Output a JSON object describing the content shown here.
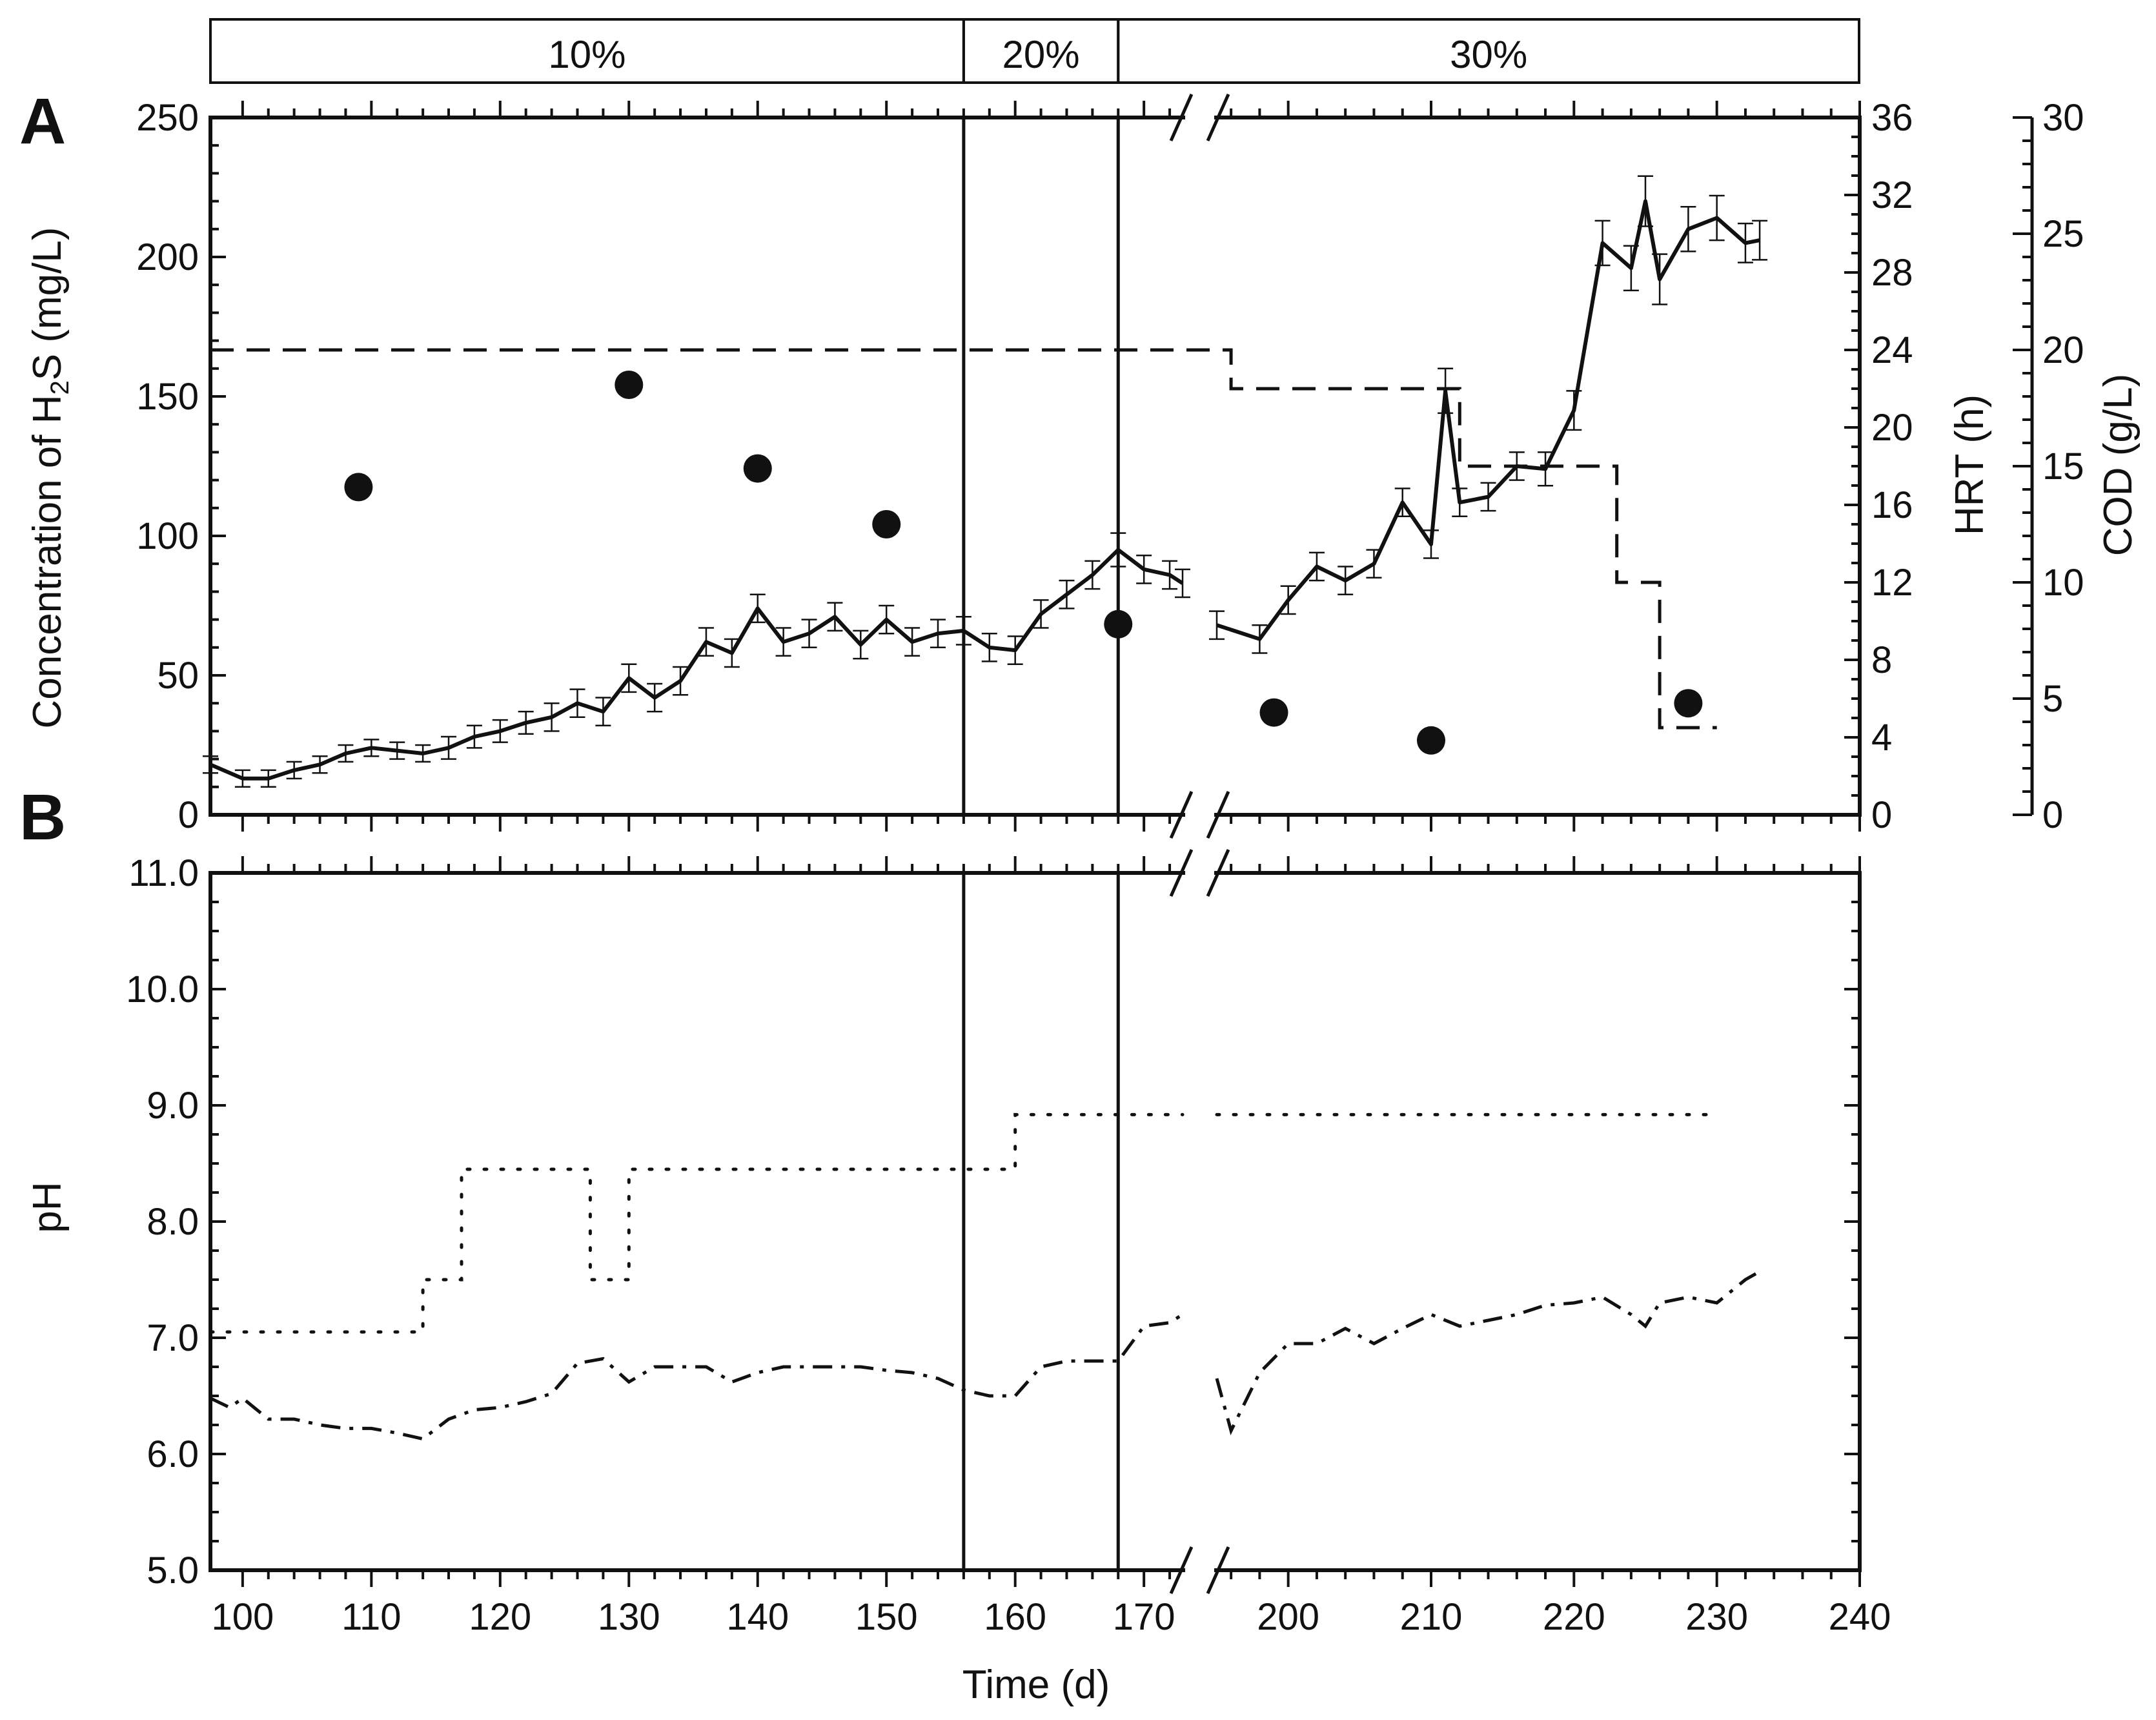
{
  "figure": {
    "panel_a_letter": "A",
    "panel_b_letter": "B",
    "bands": [
      {
        "label": "10%",
        "x_start": 97.5,
        "x_end": 156
      },
      {
        "label": "20%",
        "x_start": 156,
        "x_end": 168
      },
      {
        "label": "30%",
        "x_start": 168,
        "x_end": 240
      }
    ],
    "phase_boundaries_x": [
      156,
      168
    ],
    "axis_break": {
      "from": 173,
      "to": 195
    }
  },
  "chart_data": [
    {
      "id": "A",
      "type": "line",
      "xlabel": "",
      "xlim": [
        97.5,
        240
      ],
      "x_break": [
        173,
        195
      ],
      "y_axes": [
        {
          "id": "left",
          "label_parts": [
            "Concentration of H",
            "2",
            "S (mg/L)"
          ],
          "ylim": [
            0,
            250
          ],
          "ticks": [
            0,
            50,
            100,
            150,
            200,
            250
          ]
        },
        {
          "id": "hrt",
          "label": "HRT (h)",
          "ylim": [
            0,
            36
          ],
          "ticks": [
            0,
            4,
            8,
            12,
            16,
            20,
            24,
            28,
            32,
            36
          ]
        },
        {
          "id": "cod",
          "label": "COD (g/L)",
          "ylim": [
            0,
            30
          ],
          "ticks": [
            0,
            5,
            10,
            15,
            20,
            25,
            30
          ]
        }
      ],
      "series": [
        {
          "style": "solid-with-error-bars",
          "axis": "left",
          "x": [
            97.5,
            100,
            102,
            104,
            106,
            108,
            110,
            112,
            114,
            116,
            118,
            120,
            122,
            124,
            126,
            128,
            130,
            132,
            134,
            136,
            138,
            140,
            142,
            144,
            146,
            148,
            150,
            152,
            154,
            156,
            158,
            160,
            162,
            164,
            166,
            168,
            170,
            172,
            173,
            195,
            198,
            200,
            202,
            204,
            206,
            208,
            210,
            211,
            212,
            214,
            216,
            218,
            220,
            222,
            224,
            225,
            226,
            228,
            230,
            232,
            233
          ],
          "y": [
            18,
            13,
            13,
            16,
            18,
            22,
            24,
            23,
            22,
            24,
            28,
            30,
            33,
            35,
            40,
            37,
            49,
            42,
            48,
            62,
            58,
            74,
            62,
            65,
            71,
            61,
            70,
            62,
            65,
            66,
            60,
            59,
            72,
            79,
            86,
            95,
            88,
            86,
            83,
            68,
            63,
            77,
            89,
            84,
            90,
            112,
            97,
            152,
            112,
            114,
            125,
            124,
            145,
            205,
            196,
            220,
            192,
            210,
            214,
            205,
            206
          ],
          "err": [
            3,
            3,
            3,
            3,
            3,
            3,
            3,
            3,
            3,
            4,
            4,
            4,
            4,
            5,
            5,
            5,
            5,
            5,
            5,
            5,
            5,
            5,
            5,
            5,
            5,
            5,
            5,
            5,
            5,
            5,
            5,
            5,
            5,
            5,
            5,
            6,
            5,
            5,
            5,
            5,
            5,
            5,
            5,
            5,
            5,
            5,
            5,
            8,
            5,
            5,
            5,
            6,
            7,
            8,
            8,
            9,
            9,
            8,
            8,
            7,
            7
          ]
        },
        {
          "style": "dashed-step",
          "axis": "hrt",
          "x": [
            97.5,
            173,
            195,
            196,
            210,
            211,
            212,
            222,
            223,
            225,
            226,
            230
          ],
          "y": [
            24,
            24,
            24,
            22,
            22,
            22,
            18,
            18,
            12,
            12,
            4.5,
            4.5
          ]
        },
        {
          "style": "markers",
          "axis": "cod",
          "x": [
            109,
            130,
            140,
            150,
            168,
            199,
            210,
            228
          ],
          "y": [
            14.1,
            18.5,
            14.9,
            12.5,
            8.2,
            4.4,
            3.2,
            4.8
          ]
        }
      ]
    },
    {
      "id": "B",
      "type": "line",
      "xlabel": "Time (d)",
      "ylabel": "pH",
      "xlim": [
        97.5,
        240
      ],
      "x_break": [
        173,
        195
      ],
      "x_ticks": [
        100,
        110,
        120,
        130,
        140,
        150,
        160,
        170,
        200,
        210,
        220,
        230,
        240
      ],
      "ylim": [
        5,
        11
      ],
      "y_ticks": [
        "5.0",
        "6.0",
        "7.0",
        "8.0",
        "9.0",
        "10.0",
        "11.0"
      ],
      "series": [
        {
          "style": "dotted-step",
          "x": [
            97.5,
            114,
            114,
            117,
            117,
            127,
            127,
            130,
            130,
            160,
            160,
            173,
            195,
            230
          ],
          "y": [
            7.05,
            7.05,
            7.5,
            7.5,
            8.45,
            8.45,
            7.5,
            7.5,
            8.45,
            8.45,
            8.92,
            8.92,
            8.92,
            8.92
          ]
        },
        {
          "style": "dash-dot",
          "x": [
            97.5,
            99,
            100,
            102,
            104,
            106,
            108,
            110,
            112,
            114,
            116,
            118,
            120,
            122,
            124,
            126,
            128,
            130,
            132,
            134,
            136,
            138,
            140,
            142,
            144,
            146,
            148,
            150,
            152,
            154,
            156,
            158,
            160,
            162,
            164,
            166,
            168,
            170,
            172,
            173,
            195,
            196,
            198,
            200,
            202,
            204,
            206,
            208,
            210,
            212,
            214,
            216,
            218,
            220,
            222,
            224,
            225,
            226,
            228,
            230,
            232,
            233
          ],
          "y": [
            6.48,
            6.4,
            6.48,
            6.3,
            6.3,
            6.25,
            6.22,
            6.22,
            6.18,
            6.13,
            6.3,
            6.38,
            6.4,
            6.45,
            6.52,
            6.78,
            6.82,
            6.62,
            6.75,
            6.75,
            6.75,
            6.62,
            6.7,
            6.75,
            6.75,
            6.75,
            6.75,
            6.72,
            6.7,
            6.65,
            6.55,
            6.5,
            6.5,
            6.75,
            6.8,
            6.8,
            6.8,
            7.1,
            7.13,
            7.2,
            6.65,
            6.2,
            6.7,
            6.95,
            6.95,
            7.08,
            6.95,
            7.08,
            7.2,
            7.1,
            7.15,
            7.2,
            7.28,
            7.3,
            7.35,
            7.2,
            7.1,
            7.3,
            7.35,
            7.3,
            7.5,
            7.57
          ]
        }
      ]
    }
  ]
}
